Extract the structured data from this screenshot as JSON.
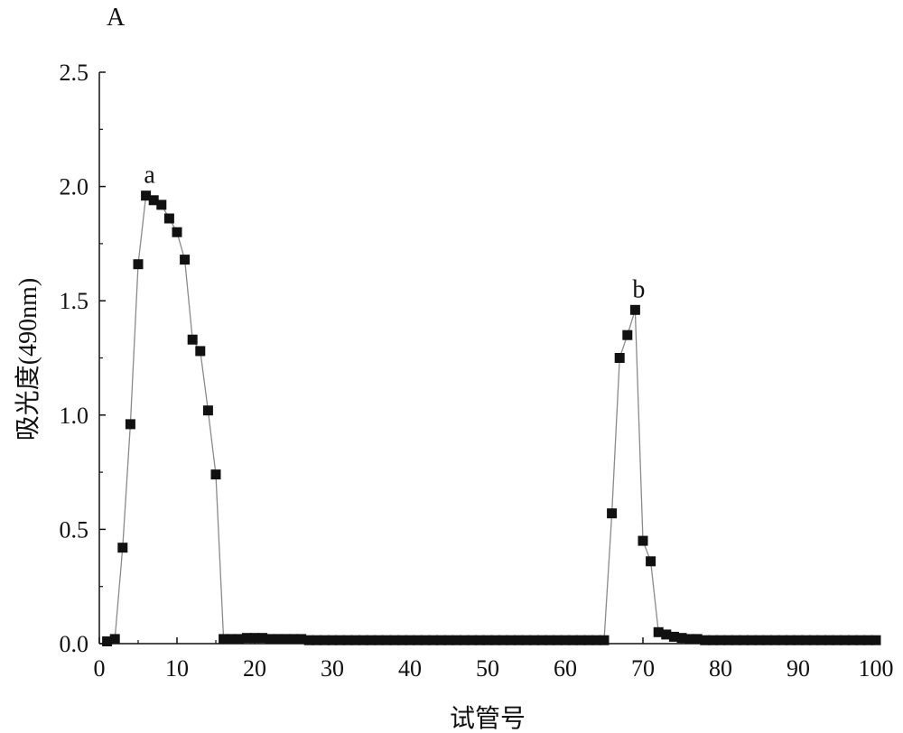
{
  "chart_data": {
    "type": "line",
    "panel_label": "A",
    "title": "",
    "xlabel": "试管号",
    "ylabel": "吸光度(490nm)",
    "xlim": [
      0,
      100
    ],
    "ylim": [
      0,
      2.5
    ],
    "xticks": [
      "0",
      "10",
      "20",
      "30",
      "40",
      "50",
      "60",
      "70",
      "80",
      "90",
      "100"
    ],
    "yticks": [
      "0.0",
      "0.5",
      "1.0",
      "1.5",
      "2.0",
      "2.5"
    ],
    "grid": false,
    "legend": "none",
    "marker": "square",
    "colors": {
      "marker": "#111111",
      "line": "#8a8a8a",
      "axis": "#111111"
    },
    "series": [
      {
        "x": [
          1,
          2,
          3,
          4,
          5,
          6,
          7,
          8,
          9,
          10,
          11,
          12,
          13,
          14,
          15,
          16,
          17,
          18,
          19,
          20,
          21,
          22,
          23,
          24,
          25,
          26,
          27,
          28,
          29,
          30,
          31,
          32,
          33,
          34,
          35,
          36,
          37,
          38,
          39,
          40,
          41,
          42,
          43,
          44,
          45,
          46,
          47,
          48,
          49,
          50,
          51,
          52,
          53,
          54,
          55,
          56,
          57,
          58,
          59,
          60,
          61,
          62,
          63,
          64,
          65,
          66,
          67,
          68,
          69,
          70,
          71,
          72,
          73,
          74,
          75,
          76,
          77,
          78,
          79,
          80,
          81,
          82,
          83,
          84,
          85,
          86,
          87,
          88,
          89,
          90,
          91,
          92,
          93,
          94,
          95,
          96,
          97,
          98,
          99,
          100
        ],
        "values": [
          0.01,
          0.02,
          0.42,
          0.96,
          1.66,
          1.96,
          1.94,
          1.92,
          1.86,
          1.8,
          1.68,
          1.33,
          1.28,
          1.02,
          0.74,
          0.02,
          0.02,
          0.02,
          0.025,
          0.025,
          0.025,
          0.02,
          0.02,
          0.02,
          0.02,
          0.02,
          0.015,
          0.015,
          0.015,
          0.015,
          0.015,
          0.015,
          0.015,
          0.015,
          0.015,
          0.015,
          0.015,
          0.015,
          0.015,
          0.015,
          0.015,
          0.015,
          0.015,
          0.015,
          0.015,
          0.015,
          0.015,
          0.015,
          0.015,
          0.015,
          0.015,
          0.015,
          0.015,
          0.015,
          0.015,
          0.015,
          0.015,
          0.015,
          0.015,
          0.015,
          0.015,
          0.015,
          0.015,
          0.015,
          0.015,
          0.57,
          1.25,
          1.35,
          1.46,
          0.45,
          0.36,
          0.05,
          0.04,
          0.03,
          0.025,
          0.02,
          0.02,
          0.015,
          0.015,
          0.015,
          0.015,
          0.015,
          0.015,
          0.015,
          0.015,
          0.015,
          0.015,
          0.015,
          0.015,
          0.015,
          0.015,
          0.015,
          0.015,
          0.015,
          0.015,
          0.015,
          0.015,
          0.015,
          0.015,
          0.015
        ]
      }
    ],
    "annotations": [
      {
        "text": "a",
        "x": 6,
        "y": 1.96
      },
      {
        "text": "b",
        "x": 69,
        "y": 1.46
      }
    ]
  }
}
